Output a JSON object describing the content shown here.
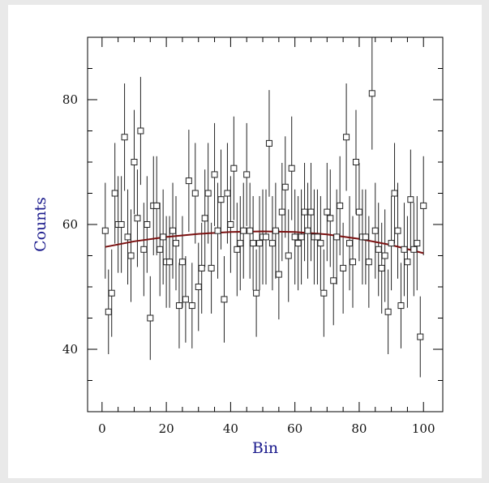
{
  "chart_data": {
    "type": "scatter",
    "xlabel": "Bin",
    "ylabel": "Counts",
    "xlim": [
      -4.5,
      106
    ],
    "ylim": [
      30,
      90
    ],
    "xticks_major": [
      0,
      20,
      40,
      60,
      80,
      100
    ],
    "xticks_minor": [
      5,
      10,
      15,
      25,
      30,
      35,
      45,
      50,
      55,
      65,
      70,
      75,
      85,
      90,
      95
    ],
    "yticks_major": [
      40,
      60,
      80
    ],
    "yticks_minor": [
      35,
      45,
      50,
      55,
      65,
      70,
      75,
      85
    ],
    "grid": false,
    "legend": "none",
    "colors": {
      "points": "#222222",
      "errorbars": "#222222",
      "fit": "#7a1010",
      "axis_title": "#1a1a8c"
    },
    "series": [
      {
        "kind": "points-with-errorbars",
        "x": [
          1,
          2,
          3,
          4,
          5,
          6,
          7,
          8,
          9,
          10,
          11,
          12,
          13,
          14,
          15,
          16,
          17,
          18,
          19,
          20,
          21,
          22,
          23,
          24,
          25,
          26,
          27,
          28,
          29,
          30,
          31,
          32,
          33,
          34,
          35,
          36,
          37,
          38,
          39,
          40,
          41,
          42,
          43,
          44,
          45,
          46,
          47,
          48,
          49,
          50,
          51,
          52,
          53,
          54,
          55,
          56,
          57,
          58,
          59,
          60,
          61,
          62,
          63,
          64,
          65,
          66,
          67,
          68,
          69,
          70,
          71,
          72,
          73,
          74,
          75,
          76,
          77,
          78,
          79,
          80,
          81,
          82,
          83,
          84,
          85,
          86,
          87,
          88,
          89,
          90,
          91,
          92,
          93,
          94,
          95,
          96,
          97,
          98,
          99,
          100
        ],
        "y": [
          59,
          46,
          49,
          65,
          60,
          60,
          74,
          58,
          55,
          70,
          61,
          75,
          56,
          60,
          45,
          63,
          63,
          56,
          58,
          54,
          54,
          59,
          57,
          47,
          54,
          48,
          67,
          47,
          65,
          50,
          53,
          61,
          65,
          53,
          68,
          59,
          64,
          48,
          65,
          60,
          69,
          56,
          57,
          59,
          68,
          59,
          57,
          49,
          57,
          58,
          58,
          73,
          57,
          59,
          52,
          62,
          66,
          55,
          69,
          58,
          57,
          58,
          62,
          59,
          62,
          58,
          58,
          57,
          49,
          62,
          61,
          51,
          58,
          63,
          53,
          74,
          57,
          54,
          70,
          62,
          58,
          58,
          54,
          81,
          59,
          56,
          53,
          55,
          46,
          57,
          65,
          59,
          47,
          56,
          54,
          64,
          56,
          57,
          42,
          63
        ],
        "y_error_rule": "sqrt(y)"
      },
      {
        "kind": "fit-curve",
        "x": [
          1,
          10,
          20,
          30,
          40,
          50,
          60,
          70,
          80,
          90,
          100
        ],
        "y": [
          56.4,
          57.3,
          58.0,
          58.5,
          58.8,
          58.9,
          58.8,
          58.4,
          57.7,
          56.7,
          55.4
        ]
      }
    ]
  }
}
